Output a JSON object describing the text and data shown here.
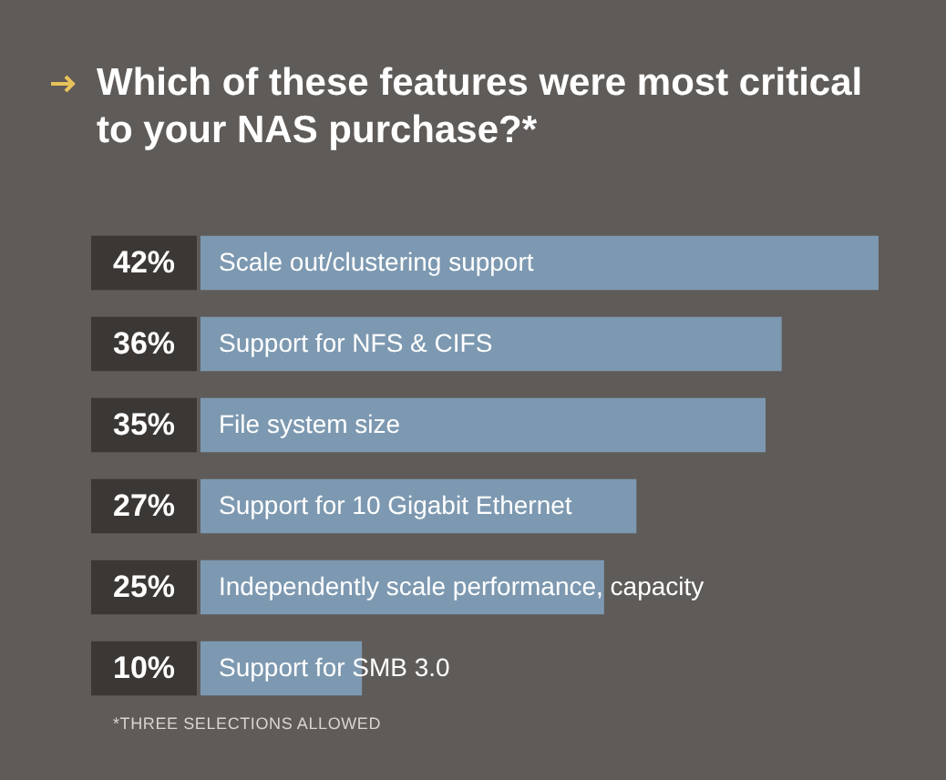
{
  "chart_data": {
    "type": "bar",
    "orientation": "horizontal",
    "title": "Which of these features were most critical to your NAS purchase?*",
    "categories": [
      "Scale out/clustering support",
      "Support for NFS & CIFS",
      "File system size",
      "Support for 10 Gigabit Ethernet",
      "Independently scale performance, capacity",
      "Support for SMB 3.0"
    ],
    "values": [
      42,
      36,
      35,
      27,
      25,
      10
    ],
    "value_labels": [
      "42%",
      "36%",
      "35%",
      "27%",
      "25%",
      "10%"
    ],
    "color": "#7d99b1",
    "annotations": [
      "*THREE SELECTIONS ALLOWED"
    ]
  }
}
